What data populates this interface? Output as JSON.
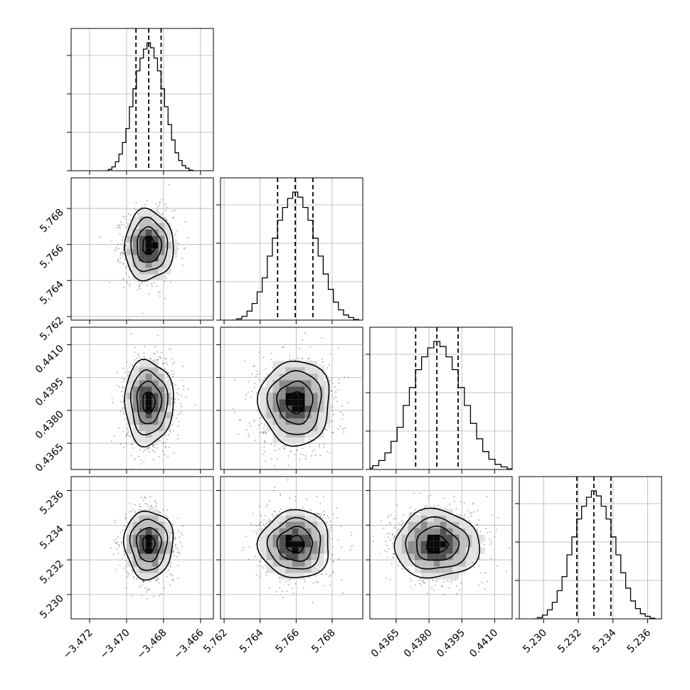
{
  "chart_data": {
    "type": "corner",
    "title": "",
    "parameters": [
      {
        "mean": -3.4688,
        "std": 0.00066,
        "range": [
          -3.473,
          -3.4653
        ],
        "ticks": [
          -3.472,
          -3.47,
          -3.468,
          -3.466
        ],
        "tick_labels": [
          "−3.472",
          "−3.470",
          "−3.468",
          "−3.466"
        ],
        "quantiles": [
          -3.46949,
          -3.4688,
          -3.46813
        ]
      },
      {
        "mean": 5.76595,
        "std": 0.00098,
        "range": [
          5.7618,
          5.7697
        ],
        "ticks": [
          5.762,
          5.764,
          5.766,
          5.768
        ],
        "tick_labels": [
          "5.762",
          "5.764",
          "5.766",
          "5.768"
        ],
        "quantiles": [
          5.76497,
          5.76595,
          5.76693
        ]
      },
      {
        "mean": 0.43836,
        "std": 0.00097,
        "range": [
          0.4353,
          0.4418
        ],
        "ticks": [
          0.4365,
          0.438,
          0.4395,
          0.441
        ],
        "tick_labels": [
          "0.4365",
          "0.4380",
          "0.4395",
          "0.4410"
        ],
        "quantiles": [
          0.43739,
          0.43836,
          0.43933
        ]
      },
      {
        "mean": 5.2329,
        "std": 0.00098,
        "range": [
          5.2286,
          5.2368
        ],
        "ticks": [
          5.23,
          5.232,
          5.234,
          5.236
        ],
        "tick_labels": [
          "5.230",
          "5.232",
          "5.234",
          "5.236"
        ],
        "quantiles": [
          5.23192,
          5.2329,
          5.23388
        ]
      }
    ],
    "histogram_relative_counts": [
      0.0,
      0.01,
      0.03,
      0.07,
      0.13,
      0.22,
      0.33,
      0.5,
      0.64,
      0.78,
      0.88,
      0.95,
      1.0,
      0.96,
      0.88,
      0.78,
      0.64,
      0.5,
      0.36,
      0.24,
      0.14,
      0.08,
      0.04,
      0.02,
      0.005
    ],
    "quantile_levels": [
      0.16,
      0.5,
      0.84
    ],
    "contour_levels_sigma": [
      0.5,
      1.0,
      1.5,
      2.0
    ],
    "grid": true
  }
}
